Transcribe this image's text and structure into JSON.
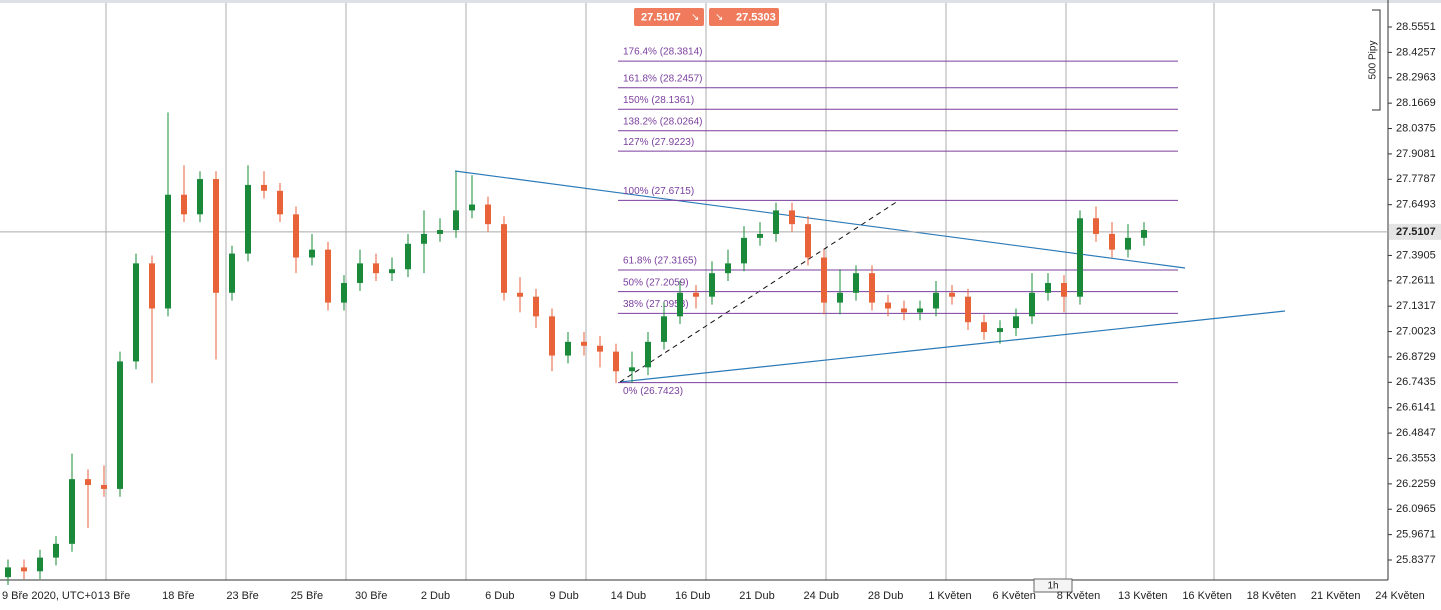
{
  "chart_data": {
    "type": "candlestick",
    "ylim": [
      25.7357,
      28.6928
    ],
    "yticks": [
      28.5551,
      28.4257,
      28.2963,
      28.1669,
      28.0375,
      27.9081,
      27.7787,
      27.6493,
      27.3905,
      27.2611,
      27.1317,
      27.0023,
      26.8729,
      26.7435,
      26.6141,
      26.4847,
      26.3553,
      26.2259,
      26.0965,
      25.9671,
      25.8377
    ],
    "x_labels": [
      "9 Bře 2020, UTC+0",
      "13 Bře",
      "18 Bře",
      "23 Bře",
      "25 Bře",
      "30 Bře",
      "2 Dub",
      "6 Dub",
      "9 Dub",
      "14 Dub",
      "16 Dub",
      "21 Dub",
      "24 Dub",
      "28 Dub",
      "1 Květen",
      "6 Květen",
      "8 Květen",
      "13 Květen",
      "16 Květen",
      "18 Květen",
      "21 Květen",
      "24 Květen"
    ],
    "up_color": "#1a8a3a",
    "down_color": "#e8623a",
    "ohlc": {
      "open": [
        25.75,
        25.8,
        25.78,
        25.85,
        25.92,
        26.25,
        26.22,
        26.2,
        26.85,
        27.35,
        27.12,
        27.7,
        27.6,
        27.78,
        27.2,
        27.4,
        27.75,
        27.72,
        27.6,
        27.38,
        27.42,
        27.15,
        27.25,
        27.35,
        27.3,
        27.32,
        27.45,
        27.5,
        27.52,
        27.62,
        27.65,
        27.55,
        27.2,
        27.18,
        27.08,
        26.88,
        26.95,
        26.93,
        26.9,
        26.8,
        26.82,
        26.95,
        27.08,
        27.2,
        27.18,
        27.3,
        27.35,
        27.48,
        27.5,
        27.62,
        27.55,
        27.38,
        27.15,
        27.2,
        27.3,
        27.15,
        27.12,
        27.1,
        27.12,
        27.2,
        27.18,
        27.05,
        27.0,
        27.02,
        27.08,
        27.2,
        27.25,
        27.18,
        27.58,
        27.5,
        27.42,
        27.48
      ],
      "high": [
        25.84,
        25.84,
        25.89,
        25.96,
        26.38,
        26.3,
        26.32,
        26.9,
        27.4,
        27.39,
        28.12,
        27.85,
        27.82,
        27.82,
        27.44,
        27.85,
        27.82,
        27.76,
        27.64,
        27.5,
        27.46,
        27.29,
        27.42,
        27.4,
        27.38,
        27.5,
        27.62,
        27.58,
        27.82,
        27.8,
        27.69,
        27.59,
        27.28,
        27.22,
        27.12,
        27.0,
        27.0,
        26.98,
        26.94,
        26.9,
        27.0,
        27.15,
        27.26,
        27.24,
        27.36,
        27.42,
        27.54,
        27.56,
        27.66,
        27.66,
        27.59,
        27.42,
        27.32,
        27.34,
        27.34,
        27.19,
        27.16,
        27.16,
        27.26,
        27.24,
        27.22,
        27.09,
        27.06,
        27.12,
        27.3,
        27.3,
        27.29,
        27.62,
        27.64,
        27.56,
        27.55,
        27.56
      ],
      "low": [
        25.71,
        25.74,
        25.74,
        25.81,
        25.88,
        26.0,
        26.16,
        26.16,
        26.81,
        26.74,
        27.08,
        27.56,
        27.56,
        26.86,
        27.16,
        27.36,
        27.68,
        27.56,
        27.3,
        27.34,
        27.11,
        27.11,
        27.21,
        27.26,
        27.26,
        27.28,
        27.3,
        27.46,
        27.48,
        27.58,
        27.51,
        27.16,
        27.1,
        27.02,
        26.8,
        26.84,
        26.88,
        26.82,
        26.74,
        26.74,
        26.78,
        26.91,
        27.04,
        27.12,
        27.14,
        27.26,
        27.31,
        27.44,
        27.46,
        27.51,
        27.34,
        27.09,
        27.09,
        27.16,
        27.11,
        27.08,
        27.06,
        27.06,
        27.08,
        27.14,
        27.01,
        26.96,
        26.94,
        26.98,
        27.04,
        27.16,
        27.1,
        27.14,
        27.46,
        27.38,
        27.38,
        27.44
      ],
      "close": [
        25.8,
        25.78,
        25.85,
        25.92,
        26.25,
        26.22,
        26.2,
        26.85,
        27.35,
        27.12,
        27.7,
        27.6,
        27.78,
        27.2,
        27.4,
        27.75,
        27.72,
        27.6,
        27.38,
        27.42,
        27.15,
        27.25,
        27.35,
        27.3,
        27.32,
        27.45,
        27.5,
        27.52,
        27.62,
        27.65,
        27.55,
        27.2,
        27.18,
        27.08,
        26.88,
        26.95,
        26.93,
        26.9,
        26.8,
        26.82,
        26.95,
        27.08,
        27.2,
        27.18,
        27.3,
        27.35,
        27.48,
        27.5,
        27.62,
        27.55,
        27.38,
        27.15,
        27.2,
        27.3,
        27.15,
        27.12,
        27.1,
        27.12,
        27.2,
        27.18,
        27.05,
        27.0,
        27.02,
        27.08,
        27.2,
        27.25,
        27.18,
        27.58,
        27.5,
        27.42,
        27.48,
        27.52
      ]
    },
    "fib_color": "#7b3f9e",
    "fib_levels": [
      {
        "label": "176.4% (28.3814)",
        "value": 28.3814
      },
      {
        "label": "161.8% (28.2457)",
        "value": 28.2457
      },
      {
        "label": "150% (28.1361)",
        "value": 28.1361
      },
      {
        "label": "138.2% (28.0264)",
        "value": 28.0264
      },
      {
        "label": "127% (27.9223)",
        "value": 27.9223
      },
      {
        "label": "100% (27.6715)",
        "value": 27.6715
      },
      {
        "label": "61.8% (27.3165)",
        "value": 27.3165
      },
      {
        "label": "50% (27.2059)",
        "value": 27.2059
      },
      {
        "label": "38% (27.0953)",
        "value": 27.0953
      },
      {
        "label": "0% (26.7423)",
        "value": 26.7423
      }
    ],
    "current_price": 27.5107,
    "sell_price": 27.5107,
    "buy_price": 27.5303,
    "range_label": "500 Pipy",
    "timeframe": "1h"
  }
}
